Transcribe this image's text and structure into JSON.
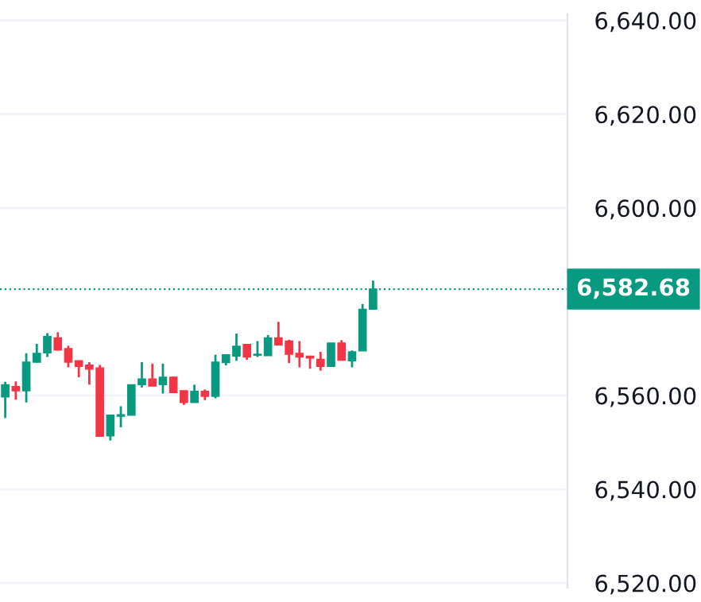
{
  "chart_data": {
    "type": "candlestick",
    "categories": [
      null,
      null,
      null,
      null,
      null,
      null,
      null,
      null,
      null,
      null,
      null,
      null,
      null,
      null,
      null,
      null,
      null,
      null,
      null,
      null,
      null,
      null,
      null,
      null,
      null,
      null,
      null,
      null,
      null,
      null,
      null,
      null,
      null,
      null,
      null,
      null,
      null,
      null,
      null,
      null,
      null,
      null,
      null,
      null,
      null,
      null,
      null,
      null,
      null,
      null,
      null,
      null,
      null,
      null
    ],
    "ohlc": [
      [
        6559.7,
        6562.9,
        6555.2,
        6562.3
      ],
      [
        6561.9,
        6563.0,
        6559.1,
        6561.0
      ],
      [
        6561.0,
        6569.0,
        6558.5,
        6567.1
      ],
      [
        6567.1,
        6571.0,
        6567.0,
        6569.0
      ],
      [
        6569.1,
        6573.3,
        6568.2,
        6572.6
      ],
      [
        6572.3,
        6573.5,
        6569.7,
        6569.7
      ],
      [
        6570.0,
        6570.6,
        6566.0,
        6567.1
      ],
      [
        6567.4,
        6567.4,
        6563.9,
        6566.2
      ],
      [
        6566.5,
        6567.1,
        6562.3,
        6565.6
      ],
      [
        6565.9,
        6566.5,
        6551.3,
        6551.3
      ],
      [
        6551.4,
        6555.8,
        6550.4,
        6555.8
      ],
      [
        6555.6,
        6557.7,
        6553.2,
        6555.9
      ],
      [
        6555.8,
        6562.3,
        6555.8,
        6562.3
      ],
      [
        6562.3,
        6567.1,
        6561.7,
        6563.5
      ],
      [
        6563.5,
        6566.8,
        6562.0,
        6562.0
      ],
      [
        6562.3,
        6566.8,
        6560.4,
        6563.9
      ],
      [
        6563.9,
        6564.0,
        6560.6,
        6560.6
      ],
      [
        6561.0,
        6561.0,
        6558.0,
        6558.5
      ],
      [
        6558.5,
        6562.3,
        6558.5,
        6560.9
      ],
      [
        6560.9,
        6561.3,
        6559.0,
        6559.8
      ],
      [
        6559.8,
        6568.7,
        6559.4,
        6567.1
      ],
      [
        6567.0,
        6568.7,
        6566.4,
        6568.7
      ],
      [
        6568.4,
        6573.2,
        6567.4,
        6570.5
      ],
      [
        6570.9,
        6570.9,
        6567.6,
        6568.2
      ],
      [
        6568.6,
        6571.6,
        6568.2,
        6568.8
      ],
      [
        6568.5,
        6572.9,
        6568.5,
        6572.3
      ],
      [
        6572.3,
        6575.7,
        6570.8,
        6570.8
      ],
      [
        6571.6,
        6571.9,
        6566.9,
        6568.8
      ],
      [
        6569.0,
        6571.6,
        6566.0,
        6568.2
      ],
      [
        6568.4,
        6568.4,
        6565.7,
        6568.0
      ],
      [
        6567.7,
        6569.3,
        6565.3,
        6566.2
      ],
      [
        6566.2,
        6571.2,
        6566.2,
        6571.2
      ],
      [
        6571.2,
        6571.8,
        6567.5,
        6567.5
      ],
      [
        6567.4,
        6569.6,
        6566.0,
        6569.3
      ],
      [
        6569.5,
        6579.5,
        6569.5,
        6578.4
      ],
      [
        6578.4,
        6584.5,
        6578.4,
        6582.68
      ],
      null,
      null,
      null,
      null,
      null,
      null,
      null,
      null,
      null,
      null,
      null,
      null,
      null,
      null,
      null,
      null,
      null,
      null
    ],
    "colors": [
      "#089981",
      "#f23645",
      "#089981",
      "#089981",
      "#089981",
      "#f23645",
      "#f23645",
      "#f23645",
      "#f23645",
      "#f23645",
      "#089981",
      "#089981",
      "#089981",
      "#089981",
      "#f23645",
      "#089981",
      "#f23645",
      "#f23645",
      "#089981",
      "#f23645",
      "#089981",
      "#089981",
      "#089981",
      "#f23645",
      "#089981",
      "#089981",
      "#f23645",
      "#f23645",
      "#f23645",
      "#f23645",
      "#f23645",
      "#089981",
      "#f23645",
      "#089981",
      "#089981",
      "#089981",
      null,
      null,
      null,
      null,
      null,
      null,
      null,
      null,
      null,
      null,
      null,
      null,
      null,
      null,
      null,
      null,
      null,
      null
    ],
    "ylim": [
      6519.0,
      6641.3
    ],
    "yticks": [
      {
        "value": 6520,
        "label": "6,520.00"
      },
      {
        "value": 6540,
        "label": "6,540.00"
      },
      {
        "value": 6560,
        "label": "6,560.00"
      },
      {
        "value": 6600,
        "label": "6,600.00"
      },
      {
        "value": 6620,
        "label": "6,620.00"
      },
      {
        "value": 6640,
        "label": "6,640.00"
      }
    ],
    "ref_lines": [
      {
        "axis": "y",
        "value": 6582.68,
        "label": "6,582.68",
        "color": "#089981",
        "line_style": "dotted"
      }
    ],
    "tick_labels": "y",
    "grid": "y",
    "legend": false
  }
}
